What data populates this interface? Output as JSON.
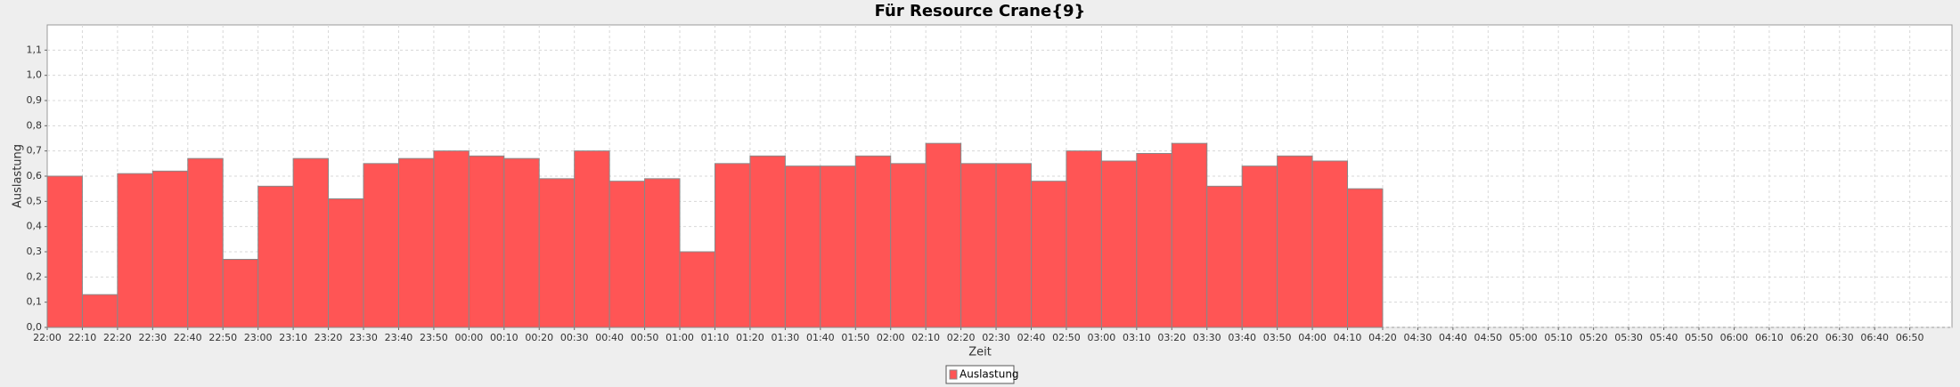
{
  "chart_data": {
    "type": "bar",
    "title": "Für Resource Crane{9}",
    "xlabel": "Zeit",
    "ylabel": "Auslastung",
    "categories": [
      "22:00",
      "22:10",
      "22:20",
      "22:30",
      "22:40",
      "22:50",
      "23:00",
      "23:10",
      "23:20",
      "23:30",
      "23:40",
      "23:50",
      "00:00",
      "00:10",
      "00:20",
      "00:30",
      "00:40",
      "00:50",
      "01:00",
      "01:10",
      "01:20",
      "01:30",
      "01:40",
      "01:50",
      "02:00",
      "02:10",
      "02:20",
      "02:30",
      "02:40",
      "02:50",
      "03:00",
      "03:10",
      "03:20",
      "03:30",
      "03:40",
      "03:50",
      "04:00",
      "04:10",
      "04:20",
      "04:30",
      "04:40",
      "04:50",
      "05:00",
      "05:10",
      "05:20",
      "05:30",
      "05:40",
      "05:50",
      "06:00",
      "06:10",
      "06:20",
      "06:30",
      "06:40",
      "06:50"
    ],
    "series": [
      {
        "name": "Auslastung",
        "color": "#ff5555",
        "values": [
          0.6,
          0.13,
          0.61,
          0.62,
          0.67,
          0.27,
          0.56,
          0.67,
          0.51,
          0.65,
          0.67,
          0.7,
          0.68,
          0.67,
          0.59,
          0.7,
          0.58,
          0.59,
          0.3,
          0.65,
          0.68,
          0.64,
          0.64,
          0.68,
          0.65,
          0.73,
          0.65,
          0.65,
          0.58,
          0.7,
          0.66,
          0.69,
          0.73,
          0.56,
          0.64,
          0.68,
          0.66,
          0.55,
          null,
          null,
          null,
          null,
          null,
          null,
          null,
          null,
          null,
          null,
          null,
          null,
          null,
          null,
          null,
          null
        ]
      }
    ],
    "ylim": [
      0,
      1.2
    ],
    "yticks": [
      {
        "value": 0,
        "label": "0,0"
      },
      {
        "value": 0.1,
        "label": "0,1"
      },
      {
        "value": 0.2,
        "label": "0,2"
      },
      {
        "value": 0.3,
        "label": "0,3"
      },
      {
        "value": 0.4,
        "label": "0,4"
      },
      {
        "value": 0.5,
        "label": "0,5"
      },
      {
        "value": 0.6,
        "label": "0,6"
      },
      {
        "value": 0.7,
        "label": "0,7"
      },
      {
        "value": 0.8,
        "label": "0,8"
      },
      {
        "value": 0.9,
        "label": "0,9"
      },
      {
        "value": 1.0,
        "label": "1,0"
      },
      {
        "value": 1.1,
        "label": "1,1"
      }
    ],
    "grid": true,
    "legend": "bottom"
  }
}
